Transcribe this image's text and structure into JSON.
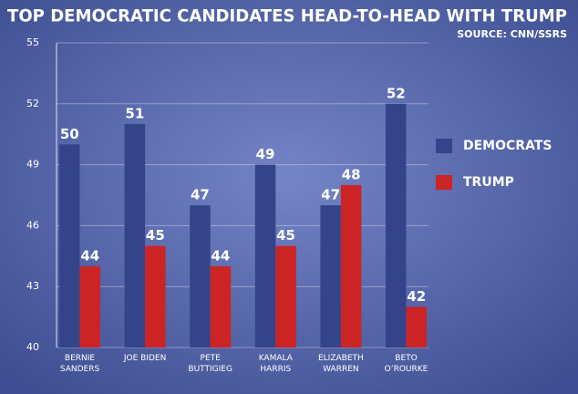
{
  "chart_data": {
    "type": "bar",
    "title": "TOP DEMOCRATIC CANDIDATES HEAD-TO-HEAD WITH TRUMP",
    "subtitle": "SOURCE: CNN/SSRS",
    "categories": [
      "BERNIE SANDERS",
      "JOE BIDEN",
      "PETE BUTTIGIEG",
      "KAMALA HARRIS",
      "ELIZABETH WARREN",
      "BETO O’ROURKE"
    ],
    "series": [
      {
        "name": "DEMOCRATS",
        "color": "#35448a",
        "values": [
          50,
          51,
          47,
          49,
          47,
          52
        ]
      },
      {
        "name": "TRUMP",
        "color": "#cc2424",
        "values": [
          44,
          45,
          44,
          45,
          48,
          42
        ]
      }
    ],
    "ylim": [
      40,
      55
    ],
    "yticks": [
      40,
      43,
      46,
      49,
      52,
      55
    ],
    "grid": true,
    "legend": "right"
  }
}
